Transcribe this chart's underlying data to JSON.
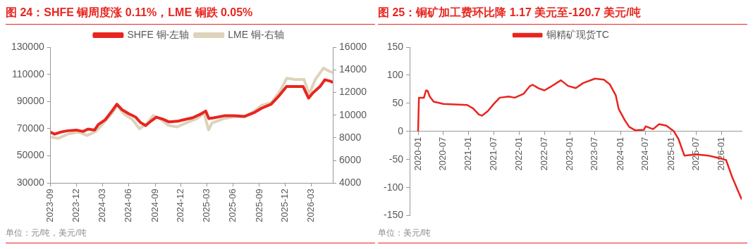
{
  "chart_data": [
    {
      "type": "line",
      "title": "图 24：SHFE 铜周度涨 0.11%，LME 铜跌 0.05%",
      "annotations": [
        "单位：元/吨，美元/吨"
      ],
      "legend": "top",
      "marker": "none",
      "grid": false,
      "xlim": [
        "2023-09-01",
        "2026-05-16"
      ],
      "xticks": [
        "2023-09",
        "2023-12",
        "2024-03",
        "2024-06",
        "2024-09",
        "2024-12",
        "2025-03",
        "2025-06",
        "2025-09",
        "2025-12",
        "2026-03"
      ],
      "ylim": [
        30000,
        130000
      ],
      "yticks": [
        30000,
        50000,
        70000,
        90000,
        110000,
        130000
      ],
      "y2lim": [
        4000,
        16000
      ],
      "y2ticks": [
        4000,
        6000,
        8000,
        10000,
        12000,
        14000,
        16000
      ],
      "series": [
        {
          "name": "SHFE 铜-左轴",
          "color": "#e8251f",
          "x": [
            "2023-09-01",
            "2023-09-15",
            "2023-10-08",
            "2023-10-31",
            "2023-11-30",
            "2023-12-24",
            "2024-01-10",
            "2024-02-02",
            "2024-02-15",
            "2024-03-10",
            "2024-04-03",
            "2024-04-20",
            "2024-05-08",
            "2024-06-01",
            "2024-06-25",
            "2024-07-12",
            "2024-07-30",
            "2024-08-17",
            "2024-09-05",
            "2024-09-28",
            "2024-10-20",
            "2024-11-19",
            "2024-12-18",
            "2025-01-10",
            "2025-02-05",
            "2025-02-25",
            "2025-03-08",
            "2025-03-25",
            "2025-05-01",
            "2025-06-05",
            "2025-07-10",
            "2025-08-15",
            "2025-09-08",
            "2025-10-12",
            "2025-11-10",
            "2025-12-05",
            "2026-01-03",
            "2026-02-01",
            "2026-02-20",
            "2026-03-08",
            "2026-04-01",
            "2026-04-18",
            "2026-05-07",
            "2026-05-16"
          ],
          "values": [
            67500,
            66000,
            67600,
            68500,
            69000,
            68000,
            69700,
            69000,
            73000,
            76500,
            83000,
            88000,
            84000,
            81000,
            78500,
            74500,
            72300,
            75500,
            78500,
            77000,
            75000,
            75500,
            77000,
            78000,
            80500,
            83000,
            77500,
            78000,
            79500,
            79500,
            79000,
            82000,
            85000,
            88000,
            94500,
            101000,
            101000,
            101000,
            92500,
            96500,
            101000,
            106000,
            105000,
            104000
          ]
        },
        {
          "name": "LME 铜-右轴",
          "color": "#ddd3bb",
          "axis": "y2",
          "x": [
            "2023-09-01",
            "2023-09-28",
            "2023-11-03",
            "2023-12-08",
            "2024-01-07",
            "2024-02-06",
            "2024-03-01",
            "2024-04-04",
            "2024-04-22",
            "2024-05-15",
            "2024-06-14",
            "2024-07-08",
            "2024-08-01",
            "2024-08-25",
            "2024-09-17",
            "2024-10-17",
            "2024-11-16",
            "2024-12-22",
            "2025-01-27",
            "2025-02-19",
            "2025-03-07",
            "2025-03-19",
            "2025-05-01",
            "2025-06-04",
            "2025-07-10",
            "2025-08-15",
            "2025-09-08",
            "2025-10-13",
            "2025-11-12",
            "2025-12-06",
            "2026-01-04",
            "2026-02-04",
            "2026-02-22",
            "2026-03-16",
            "2026-04-13",
            "2026-05-01",
            "2026-05-16"
          ],
          "values": [
            8060,
            7950,
            8350,
            8500,
            8200,
            8550,
            9200,
            10200,
            10850,
            10100,
            9600,
            8800,
            9200,
            9950,
            9700,
            9100,
            8950,
            9350,
            9700,
            10200,
            8700,
            9300,
            9700,
            9850,
            9850,
            10350,
            10850,
            11100,
            12100,
            13250,
            13150,
            13150,
            11850,
            13150,
            14150,
            13900,
            13750
          ]
        }
      ]
    },
    {
      "type": "line",
      "title": "图 25：铜矿加工费环比降 1.17 美元至-120.7 美元/吨",
      "annotations": [
        "单位：美元/吨"
      ],
      "legend": "top",
      "marker": "none",
      "grid": false,
      "xlim": [
        "2019-11-01",
        "2026-05-25"
      ],
      "xticks": [
        "2020-01",
        "2020-07",
        "2021-01",
        "2021-07",
        "2022-01",
        "2022-07",
        "2023-01",
        "2023-07",
        "2024-01",
        "2024-07",
        "2025-01",
        "2025-07",
        "2026-01"
      ],
      "ylim": [
        -150,
        150
      ],
      "yticks": [
        -150,
        -100,
        -50,
        0,
        50,
        100,
        150
      ],
      "series": [
        {
          "name": "铜精矿现货TC",
          "color": "#e8251f",
          "x": [
            "2020-01-01",
            "2020-01-07",
            "2020-02-12",
            "2020-02-27",
            "2020-03-10",
            "2020-03-25",
            "2020-04-22",
            "2020-07-01",
            "2020-09-25",
            "2020-12-20",
            "2021-02-01",
            "2021-03-15",
            "2021-04-06",
            "2021-05-18",
            "2021-07-01",
            "2021-08-12",
            "2021-10-16",
            "2021-11-28",
            "2022-02-01",
            "2022-03-15",
            "2022-04-06",
            "2022-05-18",
            "2022-07-01",
            "2022-08-12",
            "2022-10-28",
            "2022-12-18",
            "2023-02-12",
            "2023-04-06",
            "2023-07-01",
            "2023-09-03",
            "2023-10-15",
            "2023-11-28",
            "2023-12-19",
            "2024-01-10",
            "2024-02-01",
            "2024-03-04",
            "2024-04-15",
            "2024-06-18",
            "2024-07-01",
            "2024-08-23",
            "2024-10-06",
            "2024-11-28",
            "2025-01-21",
            "2025-02-23",
            "2025-04-06",
            "2025-07-01",
            "2025-09-25",
            "2025-12-20",
            "2026-02-01",
            "2026-03-15",
            "2026-04-27",
            "2026-05-25"
          ],
          "values": [
            0,
            60,
            60,
            73,
            72,
            62,
            53,
            49,
            48,
            47,
            41,
            30,
            28,
            36,
            49,
            60,
            62,
            60,
            67,
            80,
            83,
            77,
            73,
            79,
            91,
            81,
            77,
            86,
            94,
            92,
            84,
            64,
            40,
            30,
            20,
            8,
            2,
            3,
            9,
            4,
            13,
            10,
            0,
            -14,
            -43,
            -41,
            -43,
            -48,
            -51,
            -80,
            -105,
            -121
          ]
        }
      ]
    }
  ]
}
